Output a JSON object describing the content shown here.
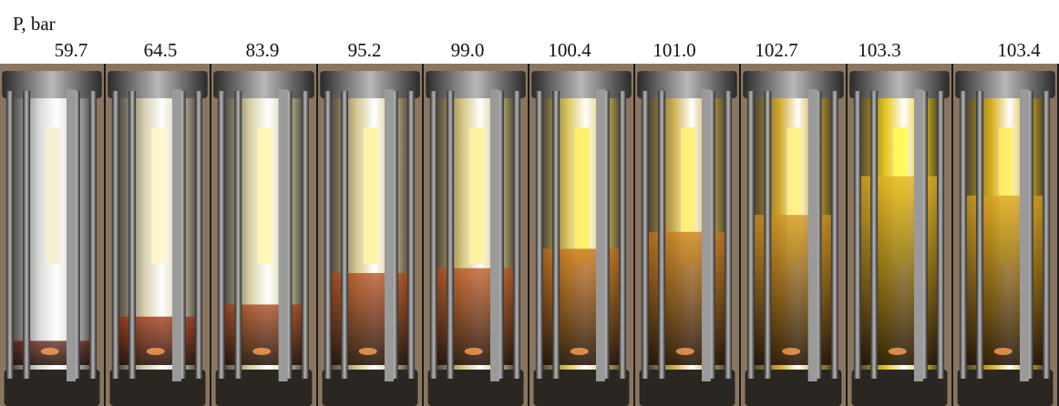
{
  "figure": {
    "axis_label": "P, bar",
    "frames": [
      {
        "pressure": "59.7",
        "liquid": "#d8d8d8",
        "phase": "#5a1a10",
        "fill": 0.1,
        "glow": "#f6f0d0"
      },
      {
        "pressure": "64.5",
        "liquid": "#d8d0b0",
        "phase": "#9a2a0a",
        "fill": 0.2,
        "glow": "#fff6c8"
      },
      {
        "pressure": "83.9",
        "liquid": "#d8d4a8",
        "phase": "#a03a10",
        "fill": 0.25,
        "glow": "#fff6b0"
      },
      {
        "pressure": "95.2",
        "liquid": "#d6c890",
        "phase": "#b04414",
        "fill": 0.38,
        "glow": "#fff4a0"
      },
      {
        "pressure": "99.0",
        "liquid": "#d6c680",
        "phase": "#b84c18",
        "fill": 0.4,
        "glow": "#fff29a"
      },
      {
        "pressure": "100.4",
        "liquid": "#dcc860",
        "phase": "#c46a14",
        "fill": 0.48,
        "glow": "#fff060"
      },
      {
        "pressure": "101.0",
        "liquid": "#d0b050",
        "phase": "#c6761a",
        "fill": 0.55,
        "glow": "#ffee70"
      },
      {
        "pressure": "102.7",
        "liquid": "#d4aa30",
        "phase": "#d09020",
        "fill": 0.62,
        "glow": "#fff080"
      },
      {
        "pressure": "103.3",
        "liquid": "#e8c820",
        "phase": "#e0b020",
        "fill": 0.78,
        "glow": "#fff850"
      },
      {
        "pressure": "103.4",
        "liquid": "#d8b020",
        "phase": "#d8a020",
        "fill": 0.7,
        "glow": "#fff060"
      }
    ]
  }
}
